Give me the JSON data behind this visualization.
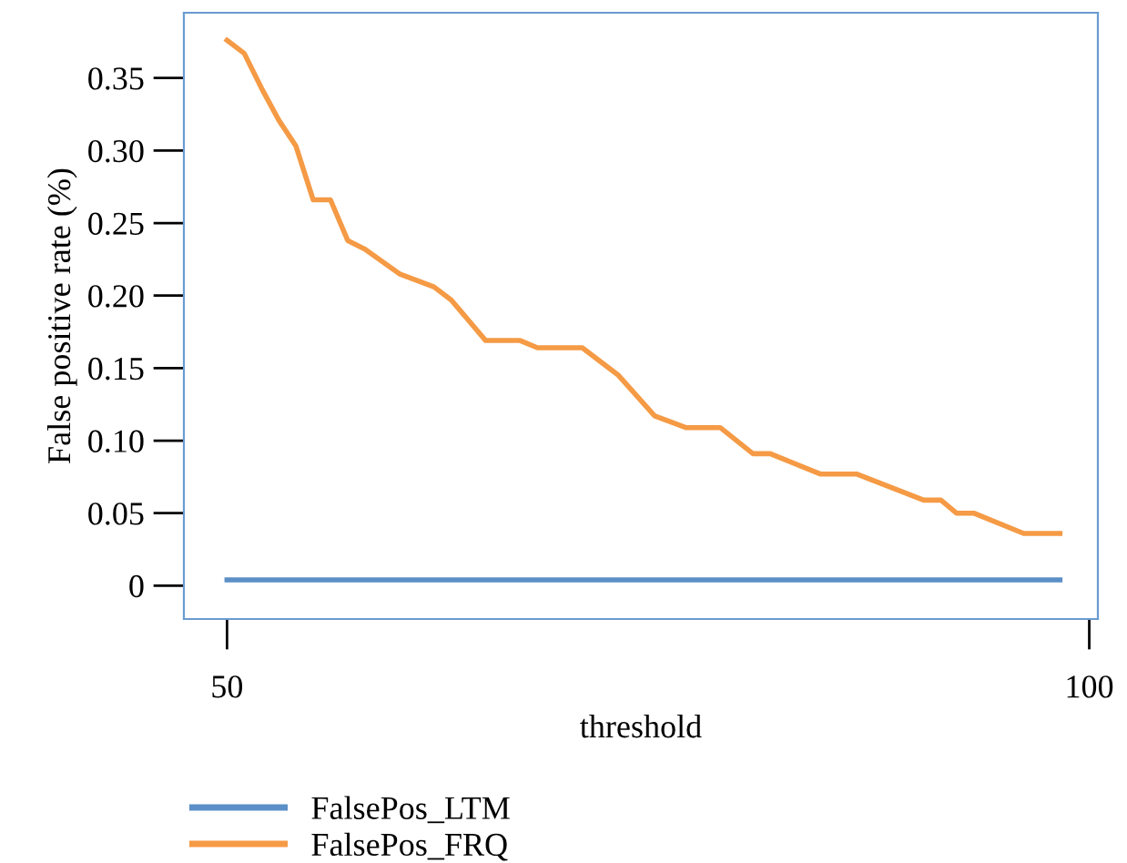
{
  "chart_data": {
    "type": "line",
    "xlabel": "threshold",
    "ylabel": "False positive rate (%)",
    "xlim": [
      47.5,
      100.5
    ],
    "ylim": [
      -0.023,
      0.395
    ],
    "xticks": [
      50,
      100
    ],
    "yticks": [
      0,
      {
        "value": 0.05,
        "label": "0.05"
      },
      {
        "value": 0.1,
        "label": "0.10"
      },
      {
        "value": 0.15,
        "label": "0.15"
      },
      {
        "value": 0.2,
        "label": "0.20"
      },
      {
        "value": 0.25,
        "label": "0.25"
      },
      {
        "value": 0.3,
        "label": "0.30"
      },
      {
        "value": 0.35,
        "label": "0.35"
      }
    ],
    "grid": false,
    "legend": "bottom left",
    "marker": "none",
    "line_style": "solid",
    "series": [
      {
        "name": "FalsePos_LTM",
        "color": "#5b8fc7",
        "x": [
          50,
          98.3
        ],
        "values": [
          0.004,
          0.004
        ]
      },
      {
        "name": "FalsePos_FRQ",
        "color": "#f59a45",
        "x": [
          50,
          51,
          52,
          53,
          54,
          55,
          56,
          57,
          58,
          60,
          62,
          63,
          65,
          67,
          68,
          70.6,
          72.7,
          74.8,
          76.6,
          78.6,
          80.5,
          81.5,
          84.4,
          86.5,
          90.4,
          91.4,
          92.3,
          93.3,
          96.2,
          98.3
        ],
        "values": [
          0.376,
          0.367,
          0.343,
          0.321,
          0.303,
          0.266,
          0.266,
          0.238,
          0.232,
          0.215,
          0.206,
          0.197,
          0.169,
          0.169,
          0.164,
          0.164,
          0.145,
          0.117,
          0.109,
          0.109,
          0.091,
          0.091,
          0.077,
          0.077,
          0.059,
          0.059,
          0.05,
          0.05,
          0.036,
          0.036
        ]
      }
    ]
  }
}
